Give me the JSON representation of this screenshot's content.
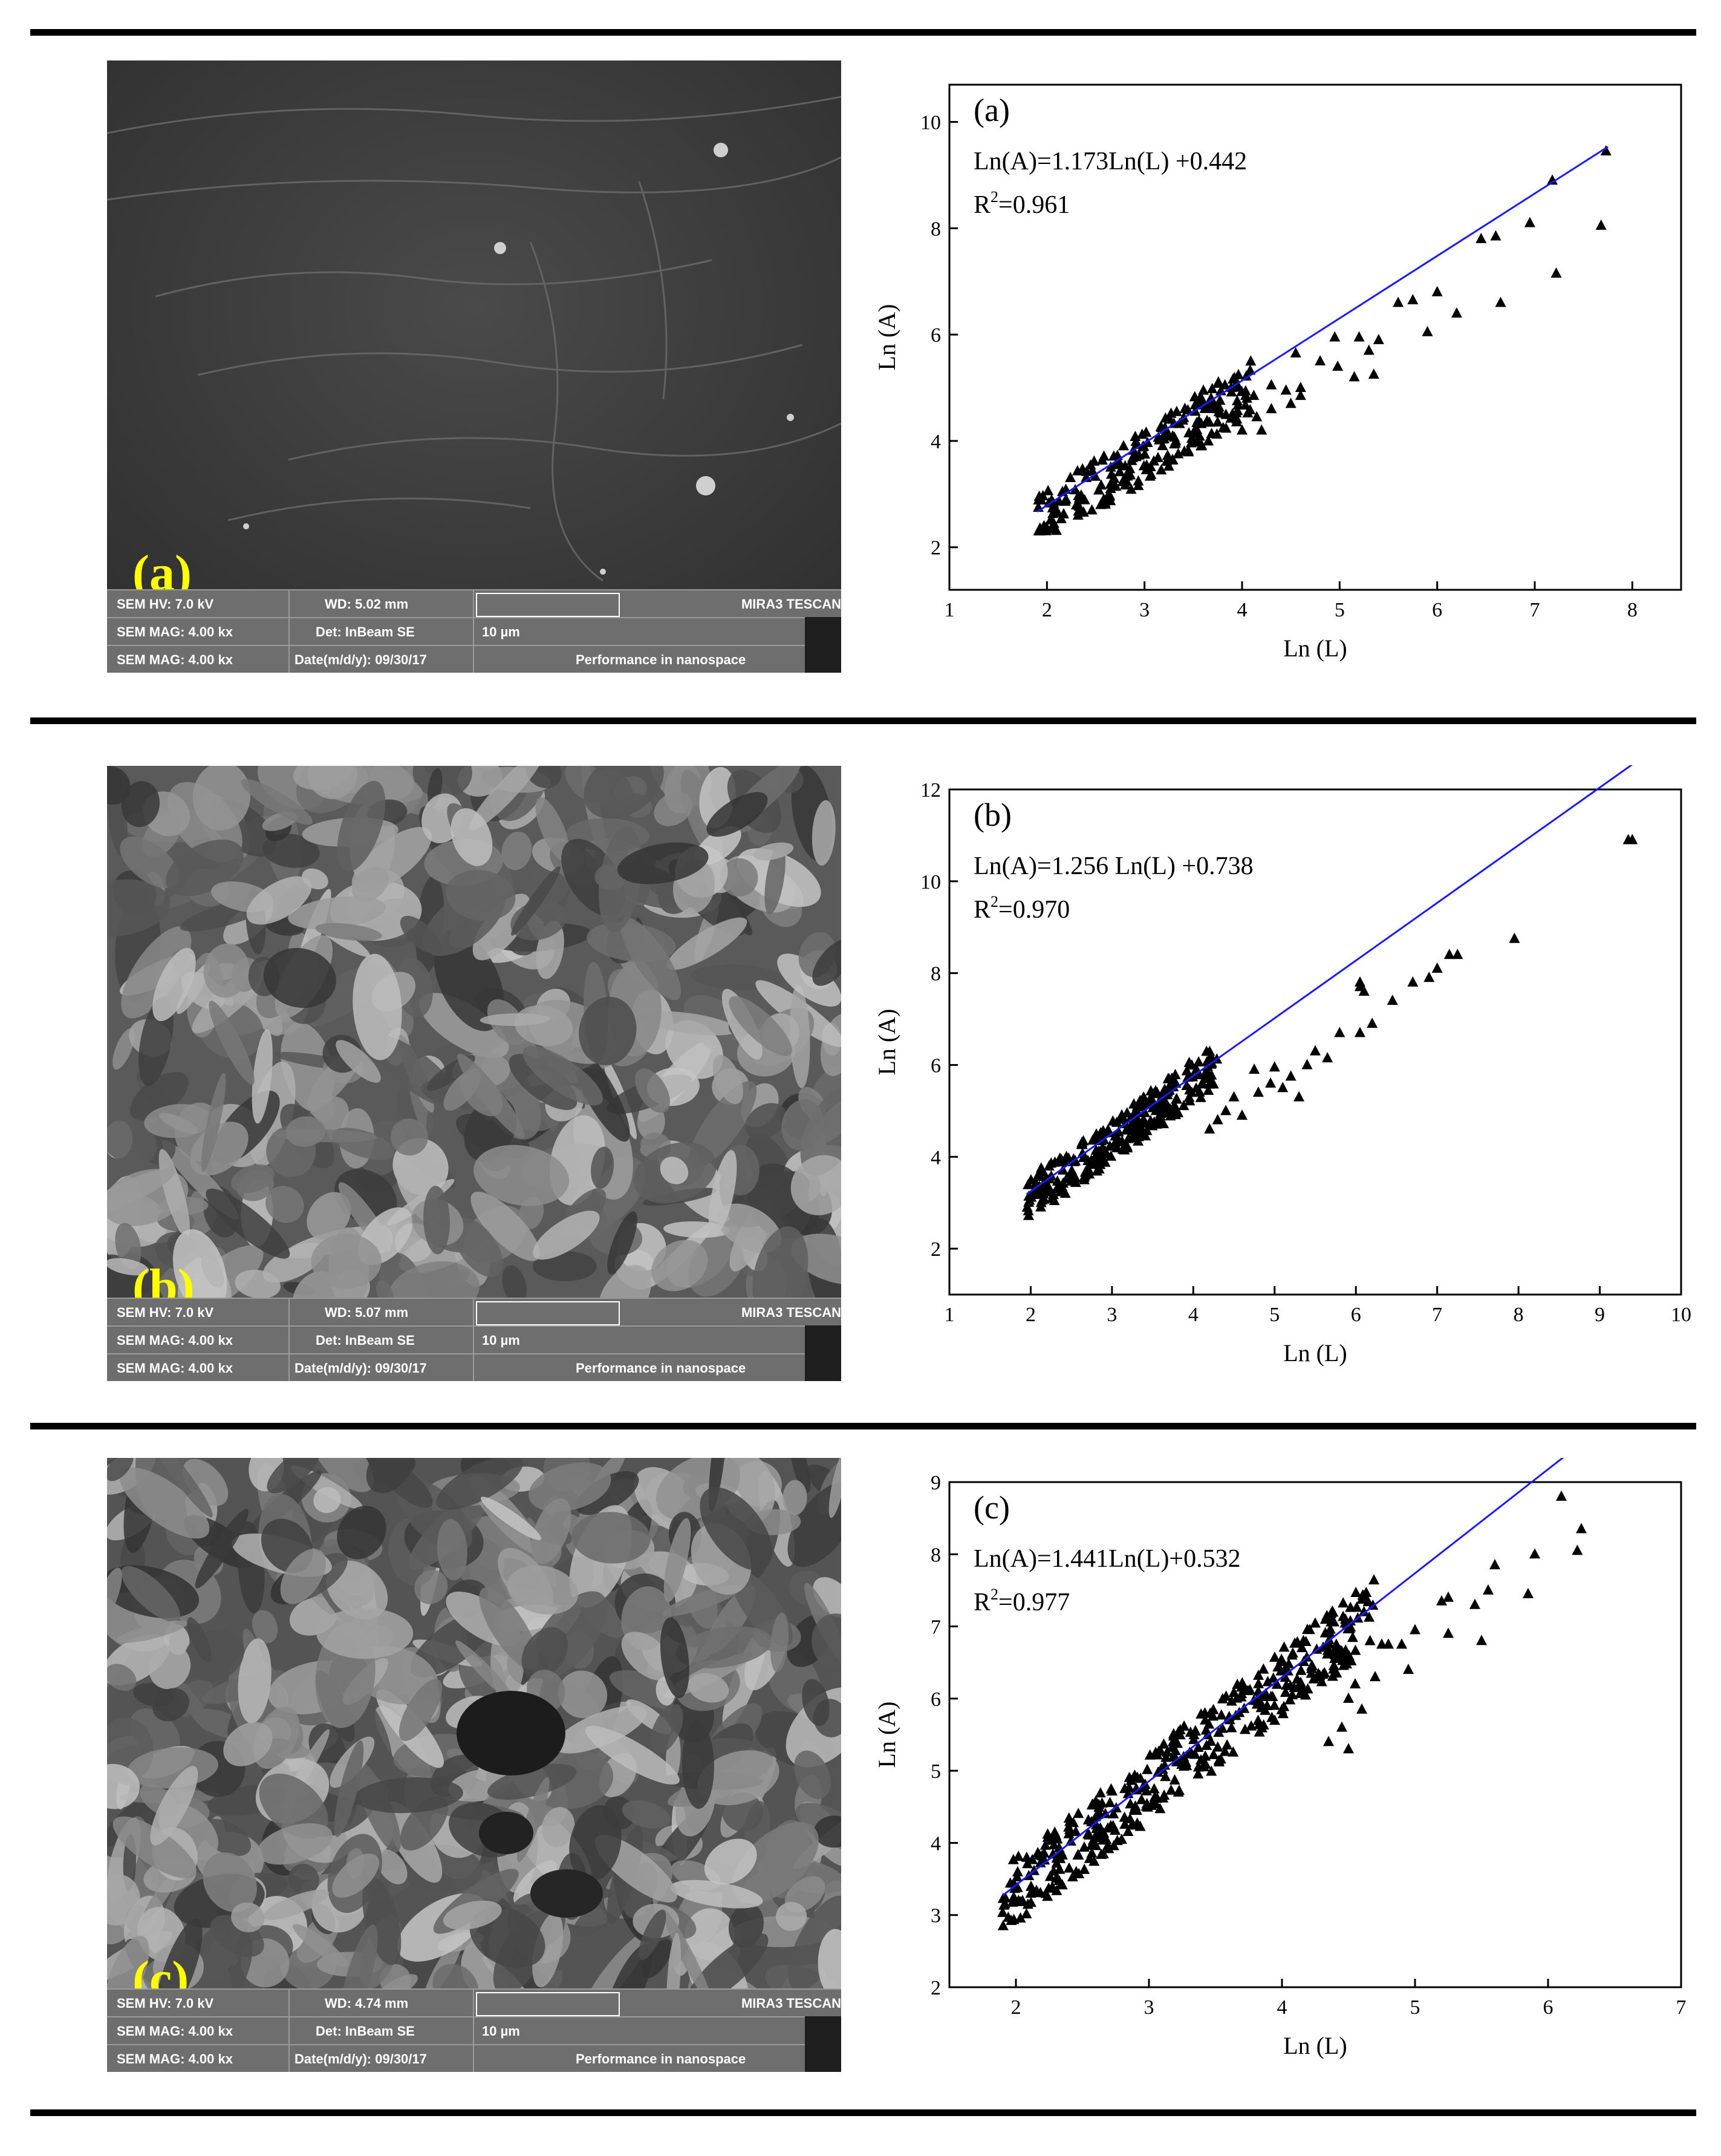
{
  "panels": [
    {
      "id": "a",
      "sem": {
        "label": "(a)",
        "hv": "SEM HV: 7.0 kV",
        "wd": "WD: 5.02 mm",
        "brand": "MIRA3 TESCAN",
        "mag": "SEM MAG: 4.00 kx",
        "det": "Det: InBeam SE",
        "scale": "10 µm",
        "mag2": "SEM MAG: 4.00 kx",
        "date": "Date(m/d/y): 09/30/17",
        "slogan": "Performance in nanospace"
      }
    },
    {
      "id": "b",
      "sem": {
        "label": "(b)",
        "hv": "SEM HV: 7.0 kV",
        "wd": "WD: 5.07 mm",
        "brand": "MIRA3 TESCAN",
        "mag": "SEM MAG: 4.00 kx",
        "det": "Det: InBeam SE",
        "scale": "10 µm",
        "mag2": "SEM MAG: 4.00 kx",
        "date": "Date(m/d/y): 09/30/17",
        "slogan": "Performance in nanospace"
      }
    },
    {
      "id": "c",
      "sem": {
        "label": "(c)",
        "hv": "SEM HV: 7.0 kV",
        "wd": "WD: 4.74 mm",
        "brand": "MIRA3 TESCAN",
        "mag": "SEM MAG: 4.00 kx",
        "det": "Det: InBeam SE",
        "scale": "10 µm",
        "mag2": "SEM MAG: 4.00 kx",
        "date": "Date(m/d/y): 09/30/17",
        "slogan": "Performance in nanospace"
      }
    }
  ],
  "chart_data": [
    {
      "type": "scatter",
      "panel_label": "(a)",
      "equation": "Ln(A)=1.173Ln(L) +0.442",
      "r2_prefix": "R",
      "r2_sup": "2",
      "r2_value": "=0.961",
      "xlabel": "Ln (L)",
      "ylabel": "Ln (A)",
      "xlim": [
        1,
        8.5
      ],
      "ylim": [
        1.2,
        10.7
      ],
      "xticks": [
        1,
        2,
        3,
        4,
        5,
        6,
        7,
        8
      ],
      "yticks": [
        2,
        4,
        6,
        8,
        10
      ],
      "fit": {
        "slope": 1.173,
        "intercept": 0.442,
        "x0": 1.9,
        "x1": 7.75
      },
      "cloud": {
        "x0": 1.9,
        "x1": 4.1,
        "seed": 11,
        "n": 230,
        "below": 0.75,
        "above": 0.3,
        "floor": 2.3
      },
      "points": [
        [
          7.73,
          9.45
        ],
        [
          7.18,
          8.9
        ],
        [
          6.95,
          8.1
        ],
        [
          7.68,
          8.05
        ],
        [
          6.45,
          7.8
        ],
        [
          6.6,
          7.85
        ],
        [
          7.22,
          7.15
        ],
        [
          6.65,
          6.6
        ],
        [
          6.0,
          6.8
        ],
        [
          5.75,
          6.65
        ],
        [
          5.6,
          6.6
        ],
        [
          6.2,
          6.4
        ],
        [
          5.9,
          6.05
        ],
        [
          5.2,
          5.95
        ],
        [
          5.4,
          5.9
        ],
        [
          5.3,
          5.7
        ],
        [
          4.95,
          5.95
        ],
        [
          4.55,
          5.65
        ],
        [
          4.8,
          5.5
        ],
        [
          4.98,
          5.4
        ],
        [
          5.15,
          5.2
        ],
        [
          5.35,
          5.25
        ],
        [
          4.3,
          5.05
        ],
        [
          4.6,
          5.0
        ],
        [
          4.6,
          4.85
        ],
        [
          4.45,
          4.95
        ],
        [
          4.12,
          4.85
        ],
        [
          4.3,
          4.6
        ],
        [
          4.5,
          4.7
        ],
        [
          3.95,
          4.75
        ],
        [
          4.15,
          4.45
        ],
        [
          3.9,
          4.5
        ],
        [
          3.75,
          4.35
        ],
        [
          4.0,
          4.2
        ],
        [
          4.2,
          4.2
        ]
      ]
    },
    {
      "type": "scatter",
      "panel_label": "(b)",
      "equation": "Ln(A)=1.256 Ln(L) +0.738",
      "r2_prefix": "R",
      "r2_sup": "2",
      "r2_value": "=0.970",
      "xlabel": "Ln (L)",
      "ylabel": "Ln (A)",
      "xlim": [
        1,
        10
      ],
      "ylim": [
        1,
        12
      ],
      "xticks": [
        1,
        2,
        3,
        4,
        5,
        6,
        7,
        8,
        9,
        10
      ],
      "yticks": [
        2,
        4,
        6,
        8,
        10,
        12
      ],
      "fit": {
        "slope": 1.256,
        "intercept": 0.738,
        "x0": 1.95,
        "x1": 9.4
      },
      "cloud": {
        "x0": 1.95,
        "x1": 4.3,
        "seed": 23,
        "n": 260,
        "below": 0.6,
        "above": 0.35,
        "floor": 2.1
      },
      "points": [
        [
          9.35,
          10.9
        ],
        [
          9.4,
          10.9
        ],
        [
          7.95,
          8.75
        ],
        [
          7.15,
          8.4
        ],
        [
          7.25,
          8.4
        ],
        [
          7.0,
          8.1
        ],
        [
          6.9,
          7.9
        ],
        [
          6.7,
          7.8
        ],
        [
          6.05,
          7.8
        ],
        [
          6.1,
          7.6
        ],
        [
          6.05,
          7.7
        ],
        [
          6.45,
          7.4
        ],
        [
          6.2,
          6.9
        ],
        [
          6.05,
          6.7
        ],
        [
          5.8,
          6.7
        ],
        [
          5.5,
          6.3
        ],
        [
          5.65,
          6.15
        ],
        [
          5.4,
          6.0
        ],
        [
          5.0,
          5.95
        ],
        [
          4.75,
          5.9
        ],
        [
          5.2,
          5.75
        ],
        [
          4.95,
          5.6
        ],
        [
          4.5,
          5.3
        ],
        [
          5.1,
          5.5
        ],
        [
          5.3,
          5.3
        ],
        [
          4.8,
          5.4
        ],
        [
          4.4,
          5.0
        ],
        [
          4.3,
          4.8
        ],
        [
          4.6,
          4.9
        ],
        [
          4.2,
          4.6
        ]
      ]
    },
    {
      "type": "scatter",
      "panel_label": "(c)",
      "equation": "Ln(A)=1.441Ln(L)+0.532",
      "r2_prefix": "R",
      "r2_sup": "2",
      "r2_value": "=0.977",
      "xlabel": "Ln (L)",
      "ylabel": "Ln (A)",
      "xlim": [
        1.5,
        7
      ],
      "ylim": [
        2,
        9
      ],
      "xticks": [
        2,
        3,
        4,
        5,
        6,
        7
      ],
      "yticks": [
        2,
        3,
        4,
        5,
        6,
        7,
        8,
        9
      ],
      "fit": {
        "slope": 1.441,
        "intercept": 0.532,
        "x0": 1.9,
        "x1": 6.25
      },
      "cloud": {
        "x0": 1.9,
        "x1": 4.7,
        "seed": 37,
        "n": 420,
        "below": 0.55,
        "above": 0.4,
        "floor": 2.55
      },
      "points": [
        [
          6.1,
          8.8
        ],
        [
          6.25,
          8.35
        ],
        [
          6.22,
          8.05
        ],
        [
          5.9,
          8.0
        ],
        [
          5.85,
          7.45
        ],
        [
          5.6,
          7.85
        ],
        [
          5.55,
          7.5
        ],
        [
          5.45,
          7.3
        ],
        [
          5.5,
          6.8
        ],
        [
          5.25,
          7.4
        ],
        [
          5.2,
          7.35
        ],
        [
          5.25,
          6.9
        ],
        [
          5.0,
          6.95
        ],
        [
          4.9,
          6.75
        ],
        [
          4.75,
          6.75
        ],
        [
          4.8,
          6.75
        ],
        [
          4.95,
          6.4
        ],
        [
          4.7,
          6.3
        ],
        [
          4.55,
          6.2
        ],
        [
          4.5,
          6.0
        ],
        [
          4.6,
          5.85
        ],
        [
          4.45,
          5.6
        ],
        [
          4.35,
          5.4
        ],
        [
          4.5,
          5.3
        ]
      ]
    }
  ]
}
